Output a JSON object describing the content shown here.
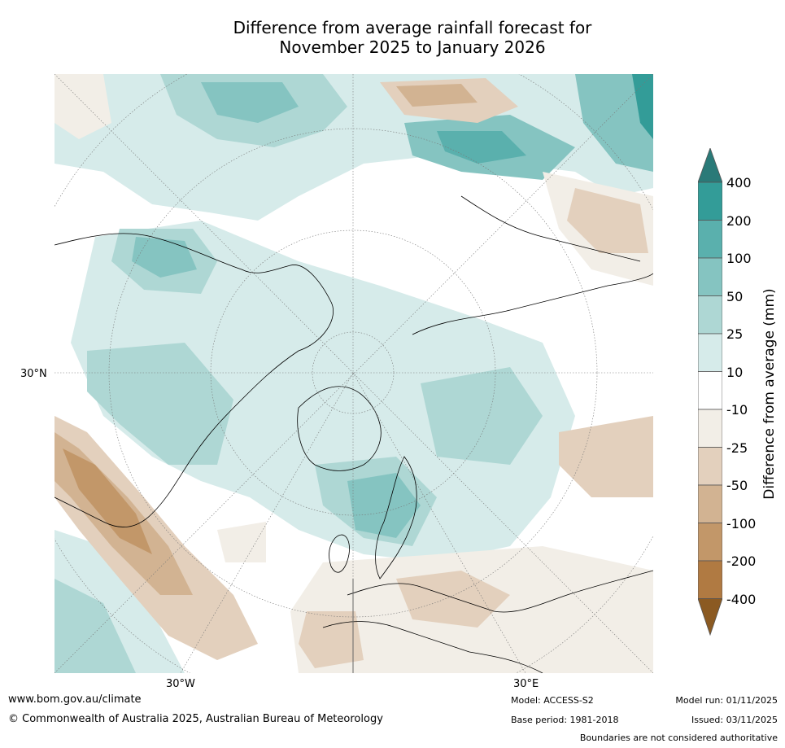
{
  "title": {
    "line1": "Difference from average rainfall forecast for",
    "line2": "November 2025 to January 2026"
  },
  "map": {
    "projection": "north-polar-stereographic",
    "ticks": {
      "lat_30n": "30°N",
      "lon_30w": "30°W",
      "lon_30e": "30°E"
    }
  },
  "colorbar": {
    "title": "Difference from average (mm)",
    "levels": [
      "400",
      "200",
      "100",
      "50",
      "25",
      "10",
      "-10",
      "-25",
      "-50",
      "-100",
      "-200",
      "-400"
    ],
    "colors": {
      "over": "#2a7a78",
      "b200_400": "#339c98",
      "b100_200": "#5ab0ad",
      "b50_100": "#85c4c1",
      "b25_50": "#aed7d4",
      "b10_25": "#d6ebea",
      "neutral": "#ffffff",
      "n10_25": "#f2eee7",
      "n25_50": "#e3d0bd",
      "n50_100": "#d2b392",
      "n100_200": "#c29769",
      "n200_400": "#b07a42",
      "under": "#8b5a22"
    }
  },
  "footer": {
    "website": "www.bom.gov.au/climate",
    "copyright": "© Commonwealth of Australia 2025, Australian Bureau of Meteorology",
    "model": "Model: ACCESS-S2",
    "base_period": "Base period: 1981-2018",
    "model_run": "Model run: 01/11/2025",
    "issued": "Issued: 03/11/2025",
    "disclaimer": "Boundaries are not considered authoritative"
  }
}
